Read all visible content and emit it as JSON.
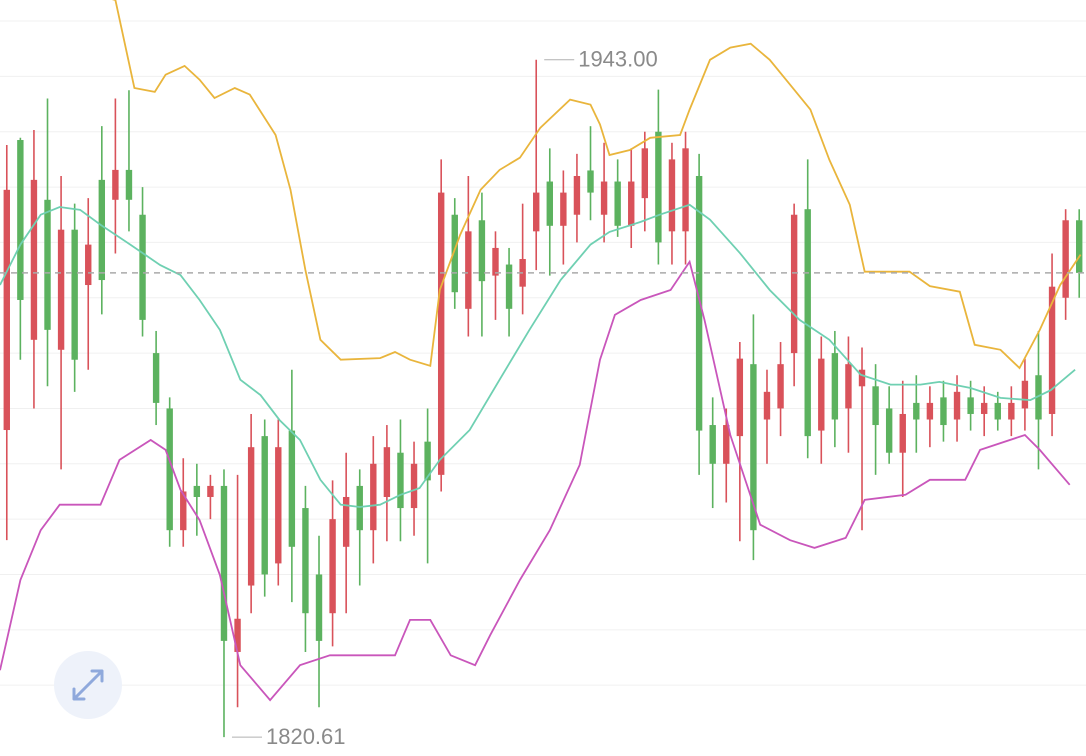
{
  "chart_data": {
    "type": "candlestick",
    "ylim": [
      1817.2,
      1953.8
    ],
    "yticks": [
      1830,
      1840,
      1850,
      1860,
      1870,
      1880,
      1890,
      1900,
      1910,
      1920,
      1930,
      1940,
      1950
    ],
    "grid": true,
    "up_color": "#d9525a",
    "down_color": "#5cb25f",
    "open": [
      1876.1,
      1928.5,
      1892.4,
      1917.7,
      1890.6,
      1912.3,
      1902.3,
      1921.3,
      1917.7,
      1923.1,
      1915,
      1890,
      1880,
      1858,
      1866,
      1864,
      1866,
      1836,
      1848,
      1875,
      1852,
      1876,
      1862,
      1850,
      1843,
      1855,
      1866,
      1858,
      1864,
      1872,
      1862,
      1874,
      1868,
      1915,
      1898,
      1914,
      1904,
      1906,
      1902,
      1912,
      1921,
      1913,
      1915,
      1923,
      1915,
      1921,
      1913,
      1918,
      1930,
      1912,
      1912,
      1922,
      1877,
      1870,
      1875,
      1888,
      1878,
      1880,
      1890,
      1916,
      1876,
      1890,
      1880,
      1884,
      1884,
      1880,
      1872,
      1881,
      1878,
      1882,
      1878,
      1882,
      1879,
      1881,
      1878,
      1880,
      1886,
      1879,
      1900,
      1914
    ],
    "high": [
      1927.6,
      1928.9,
      1930.3,
      1936.0,
      1922.0,
      1917.0,
      1918.0,
      1931.0,
      1936.0,
      1937.5,
      1920,
      1894,
      1882,
      1871,
      1870,
      1868,
      1869,
      1868,
      1879,
      1878,
      1878,
      1887,
      1866,
      1857,
      1867,
      1872,
      1869,
      1875,
      1877,
      1878,
      1874,
      1880,
      1925,
      1918,
      1922,
      1919,
      1912,
      1909,
      1917,
      1943.0,
      1927,
      1923,
      1926,
      1931,
      1928,
      1925,
      1927,
      1930,
      1937.6,
      1928,
      1930,
      1926,
      1882,
      1880,
      1892,
      1897,
      1887,
      1892,
      1917,
      1925,
      1893,
      1894,
      1893,
      1891,
      1888,
      1884,
      1885,
      1886,
      1884,
      1885,
      1886,
      1885,
      1884,
      1883,
      1884,
      1889,
      1894,
      1908,
      1916,
      1916
    ],
    "low": [
      1856.2,
      1888.8,
      1880.0,
      1884.0,
      1869.0,
      1883.0,
      1887.0,
      1897.0,
      1908.0,
      1912.0,
      1893,
      1877,
      1855,
      1855,
      1857,
      1860,
      1820.61,
      1826,
      1843,
      1846,
      1848,
      1845,
      1836,
      1826,
      1837,
      1843,
      1848,
      1852,
      1856,
      1856,
      1857,
      1852,
      1865,
      1898,
      1893,
      1893,
      1896,
      1893,
      1897,
      1905,
      1904,
      1906,
      1910,
      1914,
      1910,
      1911,
      1909,
      1912,
      1906,
      1906,
      1906,
      1868,
      1862,
      1863,
      1856,
      1852.6,
      1870,
      1875,
      1884,
      1871,
      1870,
      1873,
      1872,
      1858,
      1868,
      1870,
      1864,
      1872,
      1873,
      1874,
      1874,
      1876,
      1875,
      1876,
      1875,
      1876,
      1869,
      1875,
      1896,
      1900
    ],
    "close": [
      1919.5,
      1899.6,
      1921.3,
      1894.2,
      1912.3,
      1888.8,
      1909.6,
      1903.2,
      1923.1,
      1917.7,
      1896,
      1881,
      1858,
      1865,
      1864,
      1866,
      1838,
      1842,
      1873,
      1850,
      1873,
      1855,
      1843,
      1838,
      1860,
      1864,
      1858,
      1870,
      1873,
      1862,
      1870,
      1867,
      1919,
      1901,
      1912,
      1903,
      1909,
      1898,
      1907,
      1919,
      1913,
      1919,
      1922,
      1919,
      1921,
      1913,
      1921,
      1927,
      1910,
      1925,
      1927,
      1876,
      1870,
      1877,
      1889,
      1858,
      1883,
      1888,
      1915,
      1875,
      1889,
      1878,
      1888,
      1887,
      1877,
      1872,
      1879,
      1878,
      1881,
      1877,
      1883,
      1879,
      1881,
      1878,
      1881,
      1885,
      1878,
      1902,
      1914,
      1904.5
    ],
    "lines": [
      {
        "color": "#e9b53c",
        "x": [
          -0.5,
          8.0,
          9.4,
          10.9,
          11.7,
          13.1,
          14.2,
          15.3,
          16.8,
          17.9,
          19.8,
          20.9,
          22.0,
          23.1,
          24.6,
          27.5,
          28.6,
          29.7,
          31.2,
          31.9,
          33.4,
          34.9,
          36.3,
          37.8,
          39.3,
          41.5,
          43.0,
          43.7,
          44.4,
          45.9,
          47.4,
          49.6,
          50.3,
          51.8,
          53.3,
          54.8,
          56.2,
          57.7,
          59.2,
          60.6,
          62.1,
          63.2,
          66.5,
          68.0,
          70.2,
          71.3,
          73.2,
          74.6,
          76.1,
          77.6,
          79.1
        ],
        "values": [
          1959.3,
          1953.8,
          1937.9,
          1937.2,
          1940.3,
          1941.9,
          1939.4,
          1936.1,
          1937.9,
          1936.7,
          1929.4,
          1919.5,
          1905.0,
          1892.4,
          1888.8,
          1889.1,
          1890.2,
          1888.8,
          1887.7,
          1901.4,
          1911.4,
          1919.5,
          1923.1,
          1925.3,
          1930.7,
          1935.8,
          1934.9,
          1931.3,
          1925.8,
          1926.7,
          1928.9,
          1929.4,
          1934.0,
          1943.0,
          1945.2,
          1945.9,
          1943.0,
          1938.5,
          1934.0,
          1924.9,
          1916.8,
          1904.7,
          1904.7,
          1902.1,
          1901.1,
          1891.5,
          1890.6,
          1887.3,
          1894.2,
          1902.3,
          1907.8
        ]
      },
      {
        "color": "#6fd0b2",
        "x": [
          -0.5,
          1.0,
          2.5,
          3.9,
          5.4,
          6.9,
          9.1,
          11.3,
          12.8,
          14.2,
          15.7,
          17.2,
          18.7,
          20.1,
          21.6,
          23.1,
          24.6,
          26.0,
          27.5,
          29.0,
          30.4,
          31.9,
          34.1,
          36.3,
          38.5,
          40.8,
          43.0,
          44.4,
          46.7,
          48.1,
          50.3,
          51.8,
          54.0,
          56.2,
          58.4,
          60.6,
          62.9,
          65.1,
          67.3,
          68.7,
          71.0,
          73.2,
          75.4,
          76.9,
          78.7
        ],
        "values": [
          1902.3,
          1909.6,
          1915.0,
          1916.4,
          1915.9,
          1913.2,
          1909.6,
          1905.9,
          1904.1,
          1899.6,
          1894.2,
          1885.2,
          1882.4,
          1877.9,
          1874.3,
          1867.1,
          1862.6,
          1862.2,
          1862.6,
          1864.4,
          1865.6,
          1870.7,
          1876.1,
          1885.2,
          1894.2,
          1903.2,
          1909.6,
          1911.9,
          1913.7,
          1915.0,
          1916.8,
          1914.1,
          1908.1,
          1901.4,
          1896.0,
          1892.4,
          1886.1,
          1884.3,
          1884.3,
          1884.8,
          1883.7,
          1881.9,
          1881.5,
          1883.3,
          1887.0
        ]
      },
      {
        "color": "#c956bb",
        "x": [
          -0.5,
          1.0,
          2.5,
          3.9,
          6.9,
          8.3,
          10.6,
          11.7,
          12.8,
          14.2,
          15.7,
          17.2,
          19.4,
          21.6,
          23.8,
          28.6,
          29.7,
          31.2,
          32.7,
          34.5,
          35.6,
          37.8,
          40.0,
          42.2,
          43.7,
          44.8,
          46.7,
          48.9,
          50.3,
          51.4,
          53.3,
          55.5,
          57.7,
          59.5,
          61.8,
          63.2,
          66.2,
          68.0,
          70.6,
          71.7,
          75.0,
          76.1,
          78.3
        ],
        "values": [
          1832.7,
          1849.0,
          1858.0,
          1862.6,
          1862.6,
          1870.7,
          1874.3,
          1872.5,
          1865.3,
          1859.8,
          1849.9,
          1833.6,
          1827.3,
          1833.6,
          1835.4,
          1835.4,
          1841.8,
          1841.8,
          1835.4,
          1833.6,
          1839.0,
          1849.0,
          1858.0,
          1869.8,
          1888.8,
          1896.9,
          1899.6,
          1901.4,
          1906.5,
          1896.0,
          1875.2,
          1859.0,
          1856.2,
          1854.8,
          1856.6,
          1863.5,
          1864.4,
          1867.1,
          1867.1,
          1872.5,
          1875.2,
          1872.5,
          1866.2
        ]
      }
    ],
    "annotations": [
      {
        "value": 1943.0,
        "label": "1943.00"
      },
      {
        "value": 1820.61,
        "label": "1820.61"
      }
    ]
  }
}
